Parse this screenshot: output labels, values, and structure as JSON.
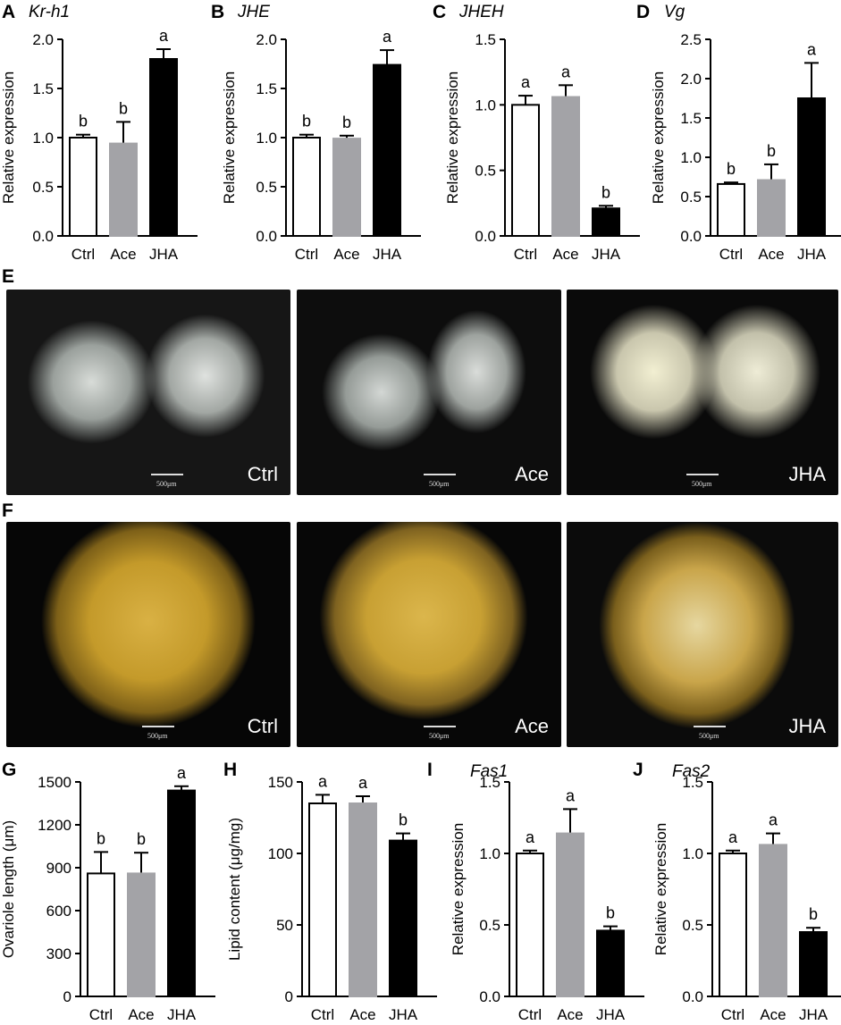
{
  "panel_labels": [
    "A",
    "B",
    "C",
    "D",
    "E",
    "F",
    "G",
    "H",
    "I",
    "J"
  ],
  "photo_rows": {
    "E": {
      "captions": [
        "Ctrl",
        "Ace",
        "JHA"
      ],
      "scale_text": [
        "500μm",
        "500μm",
        "500μm"
      ]
    },
    "F": {
      "captions": [
        "Ctrl",
        "Ace",
        "JHA"
      ],
      "scale_text": [
        "500μm",
        "500μm",
        "500μm"
      ]
    }
  },
  "colors": {
    "ctrl": "#ffffff",
    "ace": "#a3a3a7",
    "jha": "#000000"
  },
  "chart_data": [
    {
      "id": "A",
      "type": "bar",
      "title": "Kr-h1",
      "ylabel": "Relative expression",
      "categories": [
        "Ctrl",
        "Ace",
        "JHA"
      ],
      "values": [
        1.0,
        0.94,
        1.8
      ],
      "errors": [
        0.03,
        0.22,
        0.1
      ],
      "letters": [
        "b",
        "b",
        "a"
      ],
      "ylim": [
        0,
        2.0
      ],
      "yticks": [
        "0.0",
        "0.5",
        "1.0",
        "1.5",
        "2.0"
      ]
    },
    {
      "id": "B",
      "type": "bar",
      "title": "JHE",
      "ylabel": "Relative expression",
      "categories": [
        "Ctrl",
        "Ace",
        "JHA"
      ],
      "values": [
        1.0,
        0.99,
        1.74
      ],
      "errors": [
        0.03,
        0.03,
        0.15
      ],
      "letters": [
        "b",
        "b",
        "a"
      ],
      "ylim": [
        0,
        2.0
      ],
      "yticks": [
        "0.0",
        "0.5",
        "1.0",
        "1.5",
        "2.0"
      ]
    },
    {
      "id": "C",
      "type": "bar",
      "title": "JHEH",
      "ylabel": "Relative expression",
      "categories": [
        "Ctrl",
        "Ace",
        "JHA"
      ],
      "values": [
        1.0,
        1.06,
        0.21
      ],
      "errors": [
        0.07,
        0.09,
        0.02
      ],
      "letters": [
        "a",
        "a",
        "b"
      ],
      "ylim": [
        0,
        1.5
      ],
      "yticks": [
        "0.0",
        "0.5",
        "1.0",
        "1.5"
      ]
    },
    {
      "id": "D",
      "type": "bar",
      "title": "Vg",
      "ylabel": "Relative expression",
      "categories": [
        "Ctrl",
        "Ace",
        "JHA"
      ],
      "values": [
        0.66,
        0.71,
        1.75
      ],
      "errors": [
        0.02,
        0.2,
        0.45
      ],
      "letters": [
        "b",
        "b",
        "a"
      ],
      "ylim": [
        0,
        2.5
      ],
      "yticks": [
        "0.0",
        "0.5",
        "1.0",
        "1.5",
        "2.0",
        "2.5"
      ]
    },
    {
      "id": "G",
      "type": "bar",
      "title": "",
      "ylabel": "Ovariole length (μm)",
      "categories": [
        "Ctrl",
        "Ace",
        "JHA"
      ],
      "values": [
        860,
        860,
        1440
      ],
      "errors": [
        150,
        145,
        30
      ],
      "letters": [
        "b",
        "b",
        "a"
      ],
      "ylim": [
        0,
        1500
      ],
      "yticks": [
        "0",
        "300",
        "600",
        "900",
        "1200",
        "1500"
      ]
    },
    {
      "id": "H",
      "type": "bar",
      "title": "",
      "ylabel": "Lipid content (μg/mg)",
      "categories": [
        "Ctrl",
        "Ace",
        "JHA"
      ],
      "values": [
        135,
        135,
        109
      ],
      "errors": [
        6,
        5,
        5
      ],
      "letters": [
        "a",
        "a",
        "b"
      ],
      "ylim": [
        0,
        150
      ],
      "yticks": [
        "0",
        "50",
        "100",
        "150"
      ]
    },
    {
      "id": "I",
      "type": "bar",
      "title": "Fas1",
      "ylabel": "Relative expression",
      "categories": [
        "Ctrl",
        "Ace",
        "JHA"
      ],
      "values": [
        1.0,
        1.14,
        0.46
      ],
      "errors": [
        0.02,
        0.17,
        0.03
      ],
      "letters": [
        "a",
        "a",
        "b"
      ],
      "ylim": [
        0,
        1.5
      ],
      "yticks": [
        "0.0",
        "0.5",
        "1.0",
        "1.5"
      ]
    },
    {
      "id": "J",
      "type": "bar",
      "title": "Fas2",
      "ylabel": "Relative expression",
      "categories": [
        "Ctrl",
        "Ace",
        "JHA"
      ],
      "values": [
        1.0,
        1.06,
        0.45
      ],
      "errors": [
        0.02,
        0.08,
        0.03
      ],
      "letters": [
        "a",
        "a",
        "b"
      ],
      "ylim": [
        0,
        1.5
      ],
      "yticks": [
        "0.0",
        "0.5",
        "1.0",
        "1.5"
      ]
    }
  ]
}
